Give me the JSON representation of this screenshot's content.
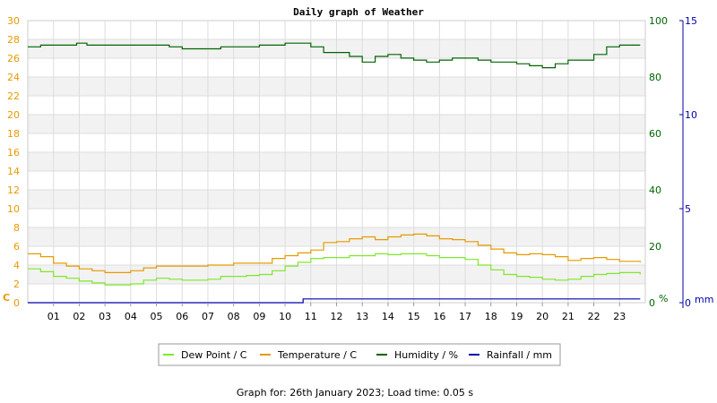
{
  "chart_data": {
    "type": "line",
    "title": "Daily graph of Weather",
    "footer": "Graph for: 26th January 2023; Load time: 0.05 s",
    "x_ticks": [
      "01",
      "02",
      "03",
      "04",
      "05",
      "06",
      "07",
      "08",
      "09",
      "10",
      "11",
      "12",
      "13",
      "14",
      "15",
      "16",
      "17",
      "18",
      "19",
      "20",
      "21",
      "22",
      "23"
    ],
    "xlim": [
      0,
      24
    ],
    "axes": {
      "temperature": {
        "unit": "C",
        "lim": [
          0,
          30
        ],
        "ticks": [
          "0",
          "2",
          "4",
          "6",
          "8",
          "10",
          "12",
          "14",
          "16",
          "18",
          "20",
          "22",
          "24",
          "26",
          "28",
          "30"
        ],
        "color": "#e69a00"
      },
      "humidity": {
        "unit": "%",
        "lim": [
          0,
          100
        ],
        "ticks": [
          "0",
          "20",
          "40",
          "60",
          "80",
          "100"
        ],
        "color": "#006400"
      },
      "rainfall": {
        "unit": "mm",
        "lim": [
          0,
          15
        ],
        "ticks": [
          "0",
          "5",
          "10",
          "15"
        ],
        "color": "#0000aa"
      }
    },
    "grid": true,
    "legend_position": "bottom",
    "series": [
      {
        "name": "Dew Point / C",
        "axis": "temperature",
        "color": "#7ee82a",
        "points": [
          [
            0,
            3.6
          ],
          [
            0.5,
            3.3
          ],
          [
            1,
            2.8
          ],
          [
            1.5,
            2.6
          ],
          [
            2,
            2.3
          ],
          [
            2.5,
            2.1
          ],
          [
            3,
            1.9
          ],
          [
            3.5,
            1.9
          ],
          [
            4,
            2.0
          ],
          [
            4.5,
            2.4
          ],
          [
            5,
            2.6
          ],
          [
            5.5,
            2.5
          ],
          [
            6,
            2.4
          ],
          [
            6.5,
            2.4
          ],
          [
            7,
            2.5
          ],
          [
            7.5,
            2.8
          ],
          [
            8,
            2.8
          ],
          [
            8.5,
            2.9
          ],
          [
            9,
            3.0
          ],
          [
            9.5,
            3.4
          ],
          [
            10,
            3.9
          ],
          [
            10.5,
            4.3
          ],
          [
            11,
            4.7
          ],
          [
            11.5,
            4.8
          ],
          [
            12,
            4.8
          ],
          [
            12.5,
            5.0
          ],
          [
            13,
            5.0
          ],
          [
            13.5,
            5.2
          ],
          [
            14,
            5.1
          ],
          [
            14.5,
            5.2
          ],
          [
            15,
            5.2
          ],
          [
            15.5,
            5.0
          ],
          [
            16,
            4.8
          ],
          [
            16.5,
            4.8
          ],
          [
            17,
            4.6
          ],
          [
            17.5,
            4.0
          ],
          [
            18,
            3.5
          ],
          [
            18.5,
            3.0
          ],
          [
            19,
            2.8
          ],
          [
            19.5,
            2.7
          ],
          [
            20,
            2.5
          ],
          [
            20.5,
            2.4
          ],
          [
            21,
            2.5
          ],
          [
            21.5,
            2.8
          ],
          [
            22,
            3.0
          ],
          [
            22.5,
            3.1
          ],
          [
            23,
            3.2
          ],
          [
            23.8,
            3.0
          ]
        ]
      },
      {
        "name": "Temperature / C",
        "axis": "temperature",
        "color": "#e69a00",
        "points": [
          [
            0,
            5.2
          ],
          [
            0.5,
            4.9
          ],
          [
            1,
            4.2
          ],
          [
            1.5,
            3.9
          ],
          [
            2,
            3.6
          ],
          [
            2.5,
            3.4
          ],
          [
            3,
            3.2
          ],
          [
            3.5,
            3.2
          ],
          [
            4,
            3.4
          ],
          [
            4.5,
            3.7
          ],
          [
            5,
            3.9
          ],
          [
            5.5,
            3.9
          ],
          [
            6,
            3.9
          ],
          [
            6.5,
            3.9
          ],
          [
            7,
            4.0
          ],
          [
            7.5,
            4.0
          ],
          [
            8,
            4.2
          ],
          [
            8.5,
            4.2
          ],
          [
            9,
            4.2
          ],
          [
            9.5,
            4.7
          ],
          [
            10,
            5.0
          ],
          [
            10.5,
            5.3
          ],
          [
            11,
            5.6
          ],
          [
            11.5,
            6.4
          ],
          [
            12,
            6.5
          ],
          [
            12.5,
            6.8
          ],
          [
            13,
            7.0
          ],
          [
            13.5,
            6.7
          ],
          [
            14,
            7.0
          ],
          [
            14.5,
            7.2
          ],
          [
            15,
            7.3
          ],
          [
            15.5,
            7.1
          ],
          [
            16,
            6.8
          ],
          [
            16.5,
            6.7
          ],
          [
            17,
            6.5
          ],
          [
            17.5,
            6.1
          ],
          [
            18,
            5.7
          ],
          [
            18.5,
            5.3
          ],
          [
            19,
            5.1
          ],
          [
            19.5,
            5.2
          ],
          [
            20,
            5.1
          ],
          [
            20.5,
            4.9
          ],
          [
            21,
            4.5
          ],
          [
            21.5,
            4.7
          ],
          [
            22,
            4.8
          ],
          [
            22.5,
            4.6
          ],
          [
            23,
            4.4
          ],
          [
            23.8,
            4.3
          ]
        ]
      },
      {
        "name": "Humidity / %",
        "axis": "humidity",
        "color": "#006400",
        "points": [
          [
            0,
            90.7
          ],
          [
            0.5,
            91.3
          ],
          [
            1,
            91.3
          ],
          [
            1.5,
            91.3
          ],
          [
            1.9,
            92.0
          ],
          [
            2.3,
            91.3
          ],
          [
            3,
            91.3
          ],
          [
            4,
            91.3
          ],
          [
            5,
            91.3
          ],
          [
            5.5,
            90.7
          ],
          [
            6,
            90.0
          ],
          [
            7,
            90.0
          ],
          [
            7.5,
            90.7
          ],
          [
            8,
            90.7
          ],
          [
            8.5,
            90.7
          ],
          [
            9,
            91.3
          ],
          [
            9.5,
            91.3
          ],
          [
            10,
            92.0
          ],
          [
            10.5,
            92.0
          ],
          [
            11,
            90.7
          ],
          [
            11.5,
            88.7
          ],
          [
            12,
            88.7
          ],
          [
            12.5,
            87.3
          ],
          [
            13,
            85.3
          ],
          [
            13.5,
            87.3
          ],
          [
            14,
            88.0
          ],
          [
            14.5,
            86.7
          ],
          [
            15,
            86.0
          ],
          [
            15.5,
            85.3
          ],
          [
            16,
            86.0
          ],
          [
            16.5,
            86.7
          ],
          [
            17,
            86.7
          ],
          [
            17.5,
            86.0
          ],
          [
            18,
            85.3
          ],
          [
            18.5,
            85.3
          ],
          [
            19,
            84.7
          ],
          [
            19.5,
            84.0
          ],
          [
            20,
            83.3
          ],
          [
            20.5,
            84.7
          ],
          [
            21,
            86.0
          ],
          [
            21.5,
            86.0
          ],
          [
            22,
            88.0
          ],
          [
            22.5,
            90.7
          ],
          [
            23,
            91.3
          ],
          [
            23.8,
            91.3
          ]
        ]
      },
      {
        "name": "Rainfall / mm",
        "axis": "rainfall",
        "color": "#0000aa",
        "points": [
          [
            0,
            0
          ],
          [
            10.7,
            0
          ],
          [
            10.7,
            0.2
          ],
          [
            23.8,
            0.2
          ]
        ]
      }
    ]
  }
}
